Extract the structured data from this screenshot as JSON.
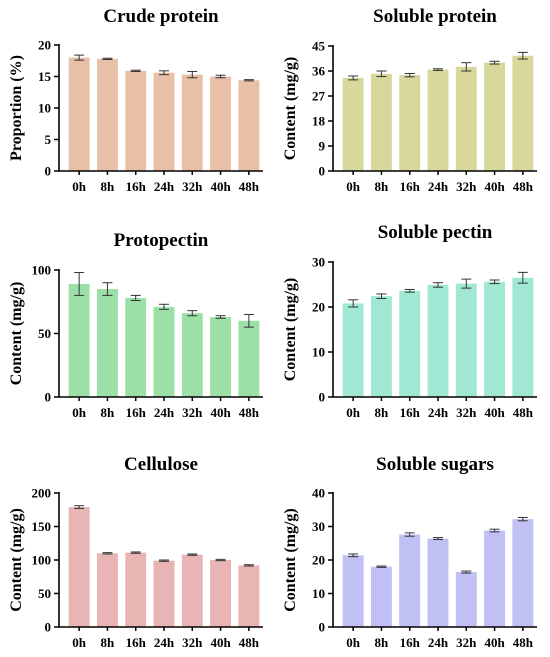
{
  "chart_data": [
    {
      "type": "bar",
      "title": "Crude protein",
      "ylabel": "Proportion (%)",
      "categories": [
        "0h",
        "8h",
        "16h",
        "24h",
        "32h",
        "40h",
        "48h"
      ],
      "values": [
        18.0,
        17.8,
        15.9,
        15.6,
        15.3,
        15.0,
        14.4
      ],
      "errors": [
        0.4,
        0.1,
        0.1,
        0.3,
        0.5,
        0.2,
        0.1
      ],
      "ylim": [
        0,
        20
      ],
      "yticks": [
        "0",
        "5",
        "10",
        "15",
        "20"
      ],
      "color": "#e8c0a8"
    },
    {
      "type": "bar",
      "title": "Soluble protein",
      "ylabel": "Content (mg/g)",
      "categories": [
        "0h",
        "8h",
        "16h",
        "24h",
        "32h",
        "40h",
        "48h"
      ],
      "values": [
        33.5,
        35.0,
        34.5,
        36.5,
        37.5,
        39.0,
        41.5
      ],
      "errors": [
        0.7,
        1.0,
        0.6,
        0.3,
        1.5,
        0.5,
        1.2
      ],
      "ylim": [
        0,
        45
      ],
      "yticks": [
        "0",
        "9",
        "18",
        "27",
        "36",
        "45"
      ],
      "color": "#d8d89c"
    },
    {
      "type": "bar",
      "title": "Protopectin",
      "ylabel": "Content (mg/g)",
      "categories": [
        "0h",
        "8h",
        "16h",
        "24h",
        "32h",
        "40h",
        "48h"
      ],
      "values": [
        89,
        85,
        78,
        71,
        66,
        63,
        60
      ],
      "errors": [
        9,
        5,
        2,
        2,
        2,
        1,
        5
      ],
      "ylim": [
        0,
        100
      ],
      "yticks": [
        "0",
        "50",
        "100"
      ],
      "color": "#9ce0a8"
    },
    {
      "type": "bar",
      "title": "Soluble pectin",
      "ylabel": "Content (mg/g)",
      "categories": [
        "0h",
        "8h",
        "16h",
        "24h",
        "32h",
        "40h",
        "48h"
      ],
      "values": [
        20.8,
        22.4,
        23.6,
        24.9,
        25.2,
        25.6,
        26.5
      ],
      "errors": [
        0.8,
        0.5,
        0.3,
        0.5,
        1.0,
        0.4,
        1.2
      ],
      "ylim": [
        0,
        30
      ],
      "yticks": [
        "0",
        "10",
        "20",
        "30"
      ],
      "color": "#a0e8d4"
    },
    {
      "type": "bar",
      "title": "Cellulose",
      "ylabel": "Content (mg/g)",
      "categories": [
        "0h",
        "8h",
        "16h",
        "24h",
        "32h",
        "40h",
        "48h"
      ],
      "values": [
        179,
        110,
        111,
        99,
        108,
        100,
        92
      ],
      "errors": [
        2,
        1,
        1,
        1,
        1,
        1,
        1
      ],
      "ylim": [
        0,
        200
      ],
      "yticks": [
        "0",
        "50",
        "100",
        "150",
        "200"
      ],
      "color": "#e8b4b4"
    },
    {
      "type": "bar",
      "title": "Soluble sugars",
      "ylabel": "Content (mg/g)",
      "categories": [
        "0h",
        "8h",
        "16h",
        "24h",
        "32h",
        "40h",
        "48h"
      ],
      "values": [
        21.4,
        18.0,
        27.6,
        26.4,
        16.4,
        28.8,
        32.2
      ],
      "errors": [
        0.4,
        0.2,
        0.5,
        0.3,
        0.3,
        0.4,
        0.5
      ],
      "ylim": [
        0,
        40
      ],
      "yticks": [
        "0",
        "10",
        "20",
        "30",
        "40"
      ],
      "color": "#c0c0f4"
    }
  ]
}
